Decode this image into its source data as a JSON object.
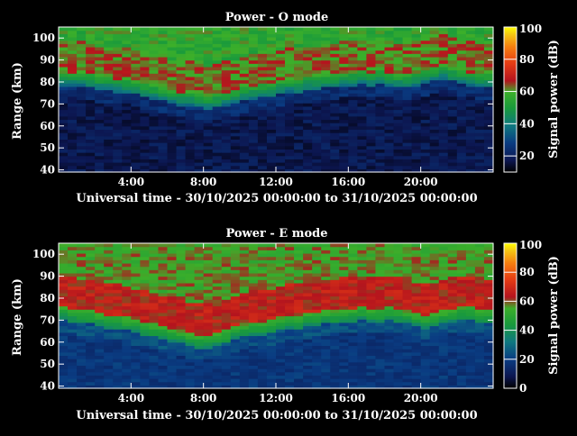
{
  "chart_data": [
    {
      "type": "heatmap",
      "title": "Power - O mode",
      "xlabel": "Universal time - 30/10/2025 00:00:00 to 31/10/2025 00:00:00",
      "ylabel": "Range (km)",
      "xlim": [
        0,
        24
      ],
      "ylim": [
        39,
        105
      ],
      "x_ticks": [
        4,
        8,
        12,
        16,
        20
      ],
      "x_tick_labels": [
        "4:00",
        "8:00",
        "12:00",
        "16:00",
        "20:00"
      ],
      "y_ticks": [
        40,
        50,
        60,
        70,
        80,
        90,
        100
      ],
      "y_tick_labels": [
        "40",
        "50",
        "60",
        "70",
        "80",
        "90",
        "100"
      ],
      "colorbar": {
        "label": "Signal power (dB)",
        "min": 10,
        "max": 100,
        "ticks": [
          20,
          40,
          60,
          80,
          100
        ],
        "tick_labels": [
          "20",
          "40",
          "60",
          "80",
          "100"
        ]
      },
      "layer_bottom_km": [
        78,
        78,
        78,
        77,
        76,
        76,
        75,
        75,
        74,
        73,
        72,
        71,
        70,
        69,
        69,
        68,
        67,
        68,
        69,
        70,
        71,
        72,
        73,
        73,
        74,
        75,
        75,
        76,
        76,
        77,
        77,
        78,
        78,
        79,
        78,
        79,
        78,
        77,
        77,
        78,
        79,
        80,
        81,
        80,
        79,
        78,
        77,
        77
      ],
      "layer_peak_db": 62
    },
    {
      "type": "heatmap",
      "title": "Power - E mode",
      "xlabel": "Universal time - 30/10/2025 00:00:00 to 31/10/2025 00:00:00",
      "ylabel": "Range (km)",
      "xlim": [
        0,
        24
      ],
      "ylim": [
        39,
        105
      ],
      "x_ticks": [
        4,
        8,
        12,
        16,
        20
      ],
      "x_tick_labels": [
        "4:00",
        "8:00",
        "12:00",
        "16:00",
        "20:00"
      ],
      "y_ticks": [
        40,
        50,
        60,
        70,
        80,
        90,
        100
      ],
      "y_tick_labels": [
        "40",
        "50",
        "60",
        "70",
        "80",
        "90",
        "100"
      ],
      "colorbar": {
        "label": "Signal power (dB)",
        "min": 0,
        "max": 100,
        "ticks": [
          0,
          20,
          40,
          60,
          80,
          100
        ],
        "tick_labels": [
          "0",
          "20",
          "40",
          "60",
          "80",
          "100"
        ]
      },
      "layer_bottom_km": [
        70,
        69,
        68,
        68,
        67,
        66,
        66,
        65,
        64,
        63,
        62,
        61,
        60,
        59,
        58,
        57,
        57,
        58,
        59,
        61,
        62,
        63,
        63,
        64,
        65,
        66,
        66,
        67,
        67,
        68,
        68,
        69,
        69,
        70,
        69,
        69,
        70,
        69,
        68,
        67,
        66,
        67,
        68,
        69,
        70,
        70,
        69,
        68
      ],
      "layer_peak_db": 64
    }
  ]
}
